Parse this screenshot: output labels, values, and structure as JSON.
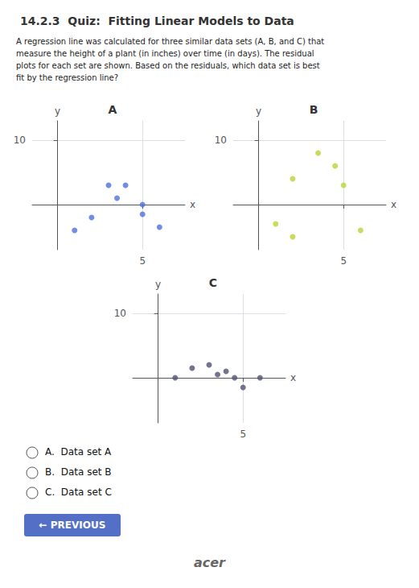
{
  "title": "14.2.3  Quiz:  Fitting Linear Models to Data",
  "subtitle": "A regression line was calculated for three similar data sets (A, B, and C) that\nmeasure the height of a plant (in inches) over time (in days). The residual\nplots for each set are shown. Based on the residuals, which data set is best\nfit by the regression line?",
  "choices": [
    "A.  Data set A",
    "B.  Data set B",
    "C.  Data set C"
  ],
  "button_text": "← PREVIOUS",
  "annotations": [
    "acer"
  ],
  "chart_data": [
    {
      "type": "scatter",
      "title": "A",
      "xlabel": "x",
      "ylabel": "y",
      "x": [
        1,
        2,
        3,
        4,
        3.5,
        5,
        5,
        6
      ],
      "values": [
        -4,
        -2,
        3,
        3,
        1,
        0,
        -1.5,
        -3.5
      ],
      "xlim": [
        -1.5,
        7.5
      ],
      "ylim": [
        -7,
        13
      ],
      "xticks": [
        5
      ],
      "yticks": [
        10
      ],
      "grid": true
    },
    {
      "type": "scatter",
      "title": "B",
      "xlabel": "x",
      "ylabel": "y",
      "x": [
        1,
        2,
        2,
        3.5,
        4.5,
        5,
        6
      ],
      "values": [
        -3,
        -5,
        4,
        8,
        6,
        3,
        -4
      ],
      "xlim": [
        -1.5,
        7.5
      ],
      "ylim": [
        -7,
        13
      ],
      "xticks": [
        5
      ],
      "yticks": [
        10
      ],
      "grid": true
    },
    {
      "type": "scatter",
      "title": "C",
      "xlabel": "x",
      "ylabel": "y",
      "x": [
        1,
        2,
        3,
        3.5,
        4,
        4.5,
        5,
        6
      ],
      "values": [
        0,
        1.5,
        2,
        0.5,
        1,
        0,
        -1.5,
        0
      ],
      "xlim": [
        -1.5,
        7.5
      ],
      "ylim": [
        -7,
        13
      ],
      "xticks": [
        5
      ],
      "yticks": [
        10
      ],
      "grid": true
    }
  ]
}
